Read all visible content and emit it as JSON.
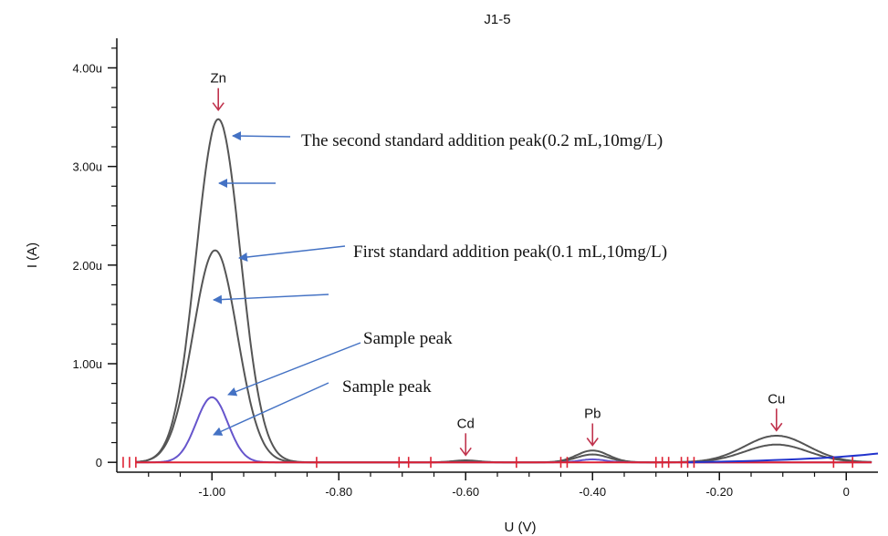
{
  "chart_data": {
    "type": "line",
    "title": "J1-5",
    "xlabel": "U (V)",
    "ylabel": "I (A)",
    "xlim": [
      -1.15,
      0.05
    ],
    "ylim": [
      -0.1,
      4.3
    ],
    "x_ticks": [
      {
        "value": -1.0,
        "label": "-1.00"
      },
      {
        "value": -0.8,
        "label": "-0.80"
      },
      {
        "value": -0.6,
        "label": "-0.60"
      },
      {
        "value": -0.4,
        "label": "-0.40"
      },
      {
        "value": -0.2,
        "label": "-0.20"
      },
      {
        "value": 0.0,
        "label": "0"
      }
    ],
    "y_ticks": [
      {
        "value": 0,
        "label": "0"
      },
      {
        "value": 1,
        "label": "1.00u"
      },
      {
        "value": 2,
        "label": "2.00u"
      },
      {
        "value": 3,
        "label": "3.00u"
      },
      {
        "value": 4,
        "label": "4.00u"
      }
    ],
    "series": [
      {
        "color": "#555555",
        "baseline": "flat",
        "peaks": [
          {
            "x": -0.99,
            "h": 3.48,
            "w": 0.035
          },
          {
            "x": -0.6,
            "h": 0.02,
            "w": 0.02
          },
          {
            "x": -0.4,
            "h": 0.12,
            "w": 0.025
          },
          {
            "x": -0.11,
            "h": 0.27,
            "w": 0.05
          }
        ]
      },
      {
        "color": "#555555",
        "baseline": "flat",
        "peaks": [
          {
            "x": -0.995,
            "h": 2.15,
            "w": 0.035
          },
          {
            "x": -0.6,
            "h": 0.015,
            "w": 0.02
          },
          {
            "x": -0.4,
            "h": 0.08,
            "w": 0.025
          },
          {
            "x": -0.11,
            "h": 0.18,
            "w": 0.05
          }
        ]
      },
      {
        "color": "#6655cc",
        "baseline": "drift",
        "peaks": [
          {
            "x": -1.0,
            "h": 0.66,
            "w": 0.025
          },
          {
            "x": -0.4,
            "h": 0.03,
            "w": 0.02
          }
        ]
      },
      {
        "color": "#dd2233",
        "baseline": "flat",
        "peaks": []
      }
    ],
    "peak_labels": [
      {
        "text": "Zn",
        "x": -0.99,
        "y": 3.85
      },
      {
        "text": "Cd",
        "x": -0.6,
        "y": 0.35
      },
      {
        "text": "Pb",
        "x": -0.4,
        "y": 0.45
      },
      {
        "text": "Cu",
        "x": -0.11,
        "y": 0.6
      }
    ],
    "annotations": [
      {
        "text": "The second standard addition peak(0.2 mL,10mg/L)"
      },
      {
        "text": "First standard addition peak(0.1 mL,10mg/L)"
      },
      {
        "text": "Sample peak"
      },
      {
        "text": "Sample peak"
      }
    ],
    "colors": {
      "axis": "#111111",
      "baseline": "#dd2233",
      "drift": "#2233cc",
      "peak_arrow": "#c0334d",
      "annotation_arrow": "#4472c4"
    }
  }
}
